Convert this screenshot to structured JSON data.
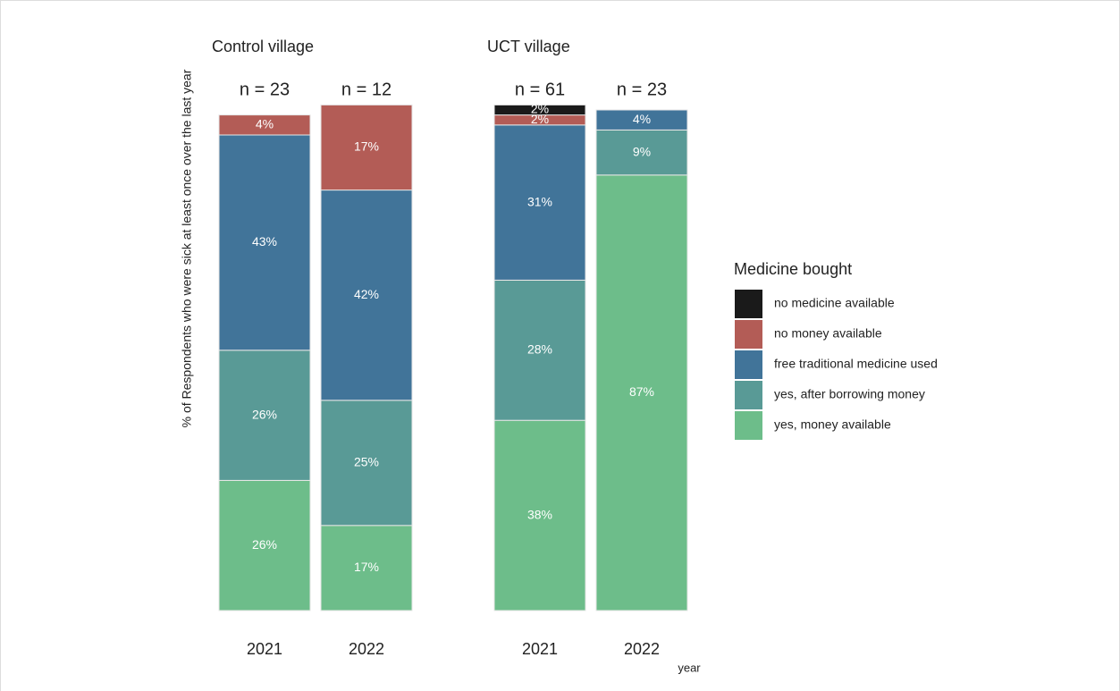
{
  "chart_data": {
    "type": "bar",
    "stacked": true,
    "y_label": "% of Respondents who were sick at least once over the last year",
    "x_label": "year",
    "legend_title": "Medicine bought",
    "ylim": [
      0,
      100
    ],
    "panels": [
      {
        "title": "Control village"
      },
      {
        "title": "UCT village"
      }
    ],
    "categories": [
      "2021",
      "2022",
      "2021",
      "2022"
    ],
    "annotations": [
      "n = 23",
      "n = 12",
      "n = 61",
      "n = 23"
    ],
    "series": [
      {
        "name": "yes, money available",
        "color": "#6dbd8a",
        "values": [
          26,
          17,
          38,
          87
        ],
        "value_labels": [
          "26%",
          "17%",
          "38%",
          "87%"
        ]
      },
      {
        "name": "yes, after borrowing money",
        "color": "#599a96",
        "values": [
          26,
          25,
          28,
          9
        ],
        "value_labels": [
          "26%",
          "25%",
          "28%",
          "9%"
        ]
      },
      {
        "name": "free traditional medicine used",
        "color": "#417499",
        "values": [
          43,
          42,
          31,
          4
        ],
        "value_labels": [
          "43%",
          "42%",
          "31%",
          "4%"
        ]
      },
      {
        "name": "no money available",
        "color": "#b35c56",
        "values": [
          4,
          17,
          2,
          null
        ],
        "value_labels": [
          "4%",
          "17%",
          "2%",
          null
        ]
      },
      {
        "name": "no medicine available",
        "color": "#1a1a1a",
        "values": [
          null,
          null,
          2,
          null
        ],
        "value_labels": [
          null,
          null,
          "2%",
          null
        ]
      }
    ]
  }
}
